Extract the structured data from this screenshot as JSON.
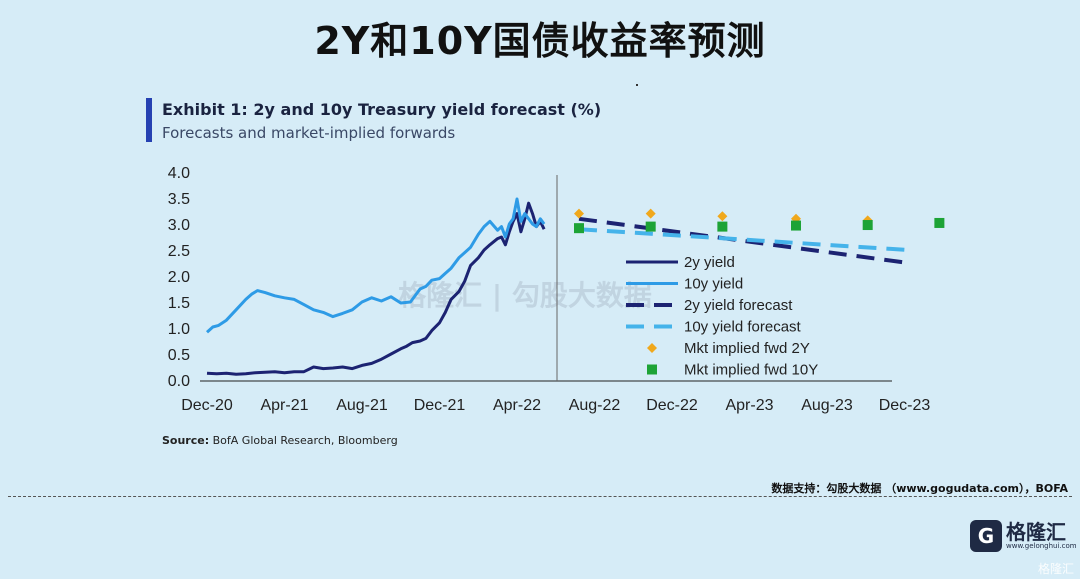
{
  "page": {
    "title": "2Y和10Y国债收益率预测",
    "footer": "数据支持：勾股大数据 （www.gogudata.com），BOFA",
    "logo_glyph": "G",
    "logo_name": "格隆汇",
    "logo_url": "www.gelonghui.com",
    "watermark_bottom": "格隆汇",
    "watermark_center": "格隆汇 | 勾股大数据",
    "source_label": "Source:",
    "source_text": "BofA Global Research, Bloomberg"
  },
  "chart_data": {
    "type": "line",
    "title": "Exhibit 1: 2y and 10y Treasury yield forecast (%)",
    "subtitle": "Forecasts and market-implied forwards",
    "ylim": [
      0.0,
      4.0
    ],
    "yticks": [
      "0.0",
      "0.5",
      "1.0",
      "1.5",
      "2.0",
      "2.5",
      "3.0",
      "3.5",
      "4.0"
    ],
    "xticks": [
      "Dec-20",
      "Apr-21",
      "Aug-21",
      "Dec-21",
      "Apr-22",
      "Aug-22",
      "Dec-22",
      "Apr-23",
      "Aug-23",
      "Dec-23"
    ],
    "x_unit": "months since Dec-20",
    "history_end_month": 17.4,
    "colors": {
      "y2": "#1c2372",
      "y10": "#2e9be6",
      "y2_forecast": "#1c2372",
      "y10_forecast": "#45b3ea",
      "fwd2y": "#f0a81c",
      "fwd10y": "#1da336"
    },
    "series": [
      {
        "name": "2y yield",
        "kind": "line",
        "x": [
          0,
          0.5,
          1,
          1.5,
          2,
          2.5,
          3,
          3.5,
          4,
          4.5,
          5,
          5.5,
          6,
          6.5,
          7,
          7.5,
          8,
          8.5,
          9,
          9.5,
          10,
          10.3,
          10.6,
          11,
          11.3,
          11.6,
          12,
          12.3,
          12.6,
          13,
          13.3,
          13.6,
          14,
          14.3,
          14.6,
          15,
          15.2,
          15.4,
          15.6,
          15.8,
          16,
          16.2,
          16.4,
          16.6,
          16.8,
          17,
          17.2,
          17.4
        ],
        "values": [
          0.13,
          0.12,
          0.13,
          0.11,
          0.12,
          0.14,
          0.15,
          0.16,
          0.14,
          0.16,
          0.16,
          0.25,
          0.22,
          0.23,
          0.25,
          0.22,
          0.28,
          0.32,
          0.4,
          0.5,
          0.6,
          0.65,
          0.72,
          0.75,
          0.8,
          0.95,
          1.1,
          1.3,
          1.55,
          1.7,
          1.9,
          2.2,
          2.35,
          2.5,
          2.6,
          2.72,
          2.75,
          2.6,
          2.85,
          3.05,
          3.2,
          2.85,
          3.1,
          3.4,
          3.2,
          2.95,
          3.05,
          2.9
        ]
      },
      {
        "name": "10y yield",
        "kind": "line",
        "x": [
          0,
          0.3,
          0.6,
          1,
          1.5,
          2,
          2.3,
          2.6,
          3,
          3.5,
          4,
          4.5,
          5,
          5.5,
          6,
          6.5,
          7,
          7.5,
          8,
          8.5,
          9,
          9.5,
          10,
          10.5,
          11,
          11.3,
          11.6,
          12,
          12.3,
          12.6,
          13,
          13.3,
          13.6,
          14,
          14.3,
          14.6,
          15,
          15.2,
          15.4,
          15.6,
          15.8,
          16,
          16.2,
          16.4,
          16.6,
          16.8,
          17,
          17.2,
          17.4
        ],
        "values": [
          0.92,
          1.02,
          1.05,
          1.15,
          1.35,
          1.55,
          1.65,
          1.72,
          1.68,
          1.62,
          1.58,
          1.55,
          1.45,
          1.35,
          1.3,
          1.22,
          1.28,
          1.35,
          1.5,
          1.58,
          1.52,
          1.6,
          1.48,
          1.5,
          1.75,
          1.8,
          1.92,
          1.95,
          2.05,
          2.15,
          2.35,
          2.45,
          2.55,
          2.8,
          2.95,
          3.05,
          2.88,
          2.95,
          2.75,
          3.0,
          3.1,
          3.48,
          3.05,
          3.2,
          3.1,
          3.0,
          2.95,
          3.1,
          3.0
        ]
      },
      {
        "name": "2y yield forecast",
        "kind": "dashed",
        "x": [
          19.2,
          36.2
        ],
        "values": [
          3.1,
          2.25
        ]
      },
      {
        "name": "10y yield forecast",
        "kind": "dashed",
        "x": [
          19.2,
          36.2
        ],
        "values": [
          2.9,
          2.5
        ]
      },
      {
        "name": "Mkt implied fwd 2Y",
        "kind": "diamond",
        "x": [
          19.2,
          22.9,
          26.6,
          30.4,
          34.1
        ],
        "values": [
          3.2,
          3.2,
          3.15,
          3.1,
          3.07
        ]
      },
      {
        "name": "Mkt implied fwd 10Y",
        "kind": "square",
        "x": [
          19.2,
          22.9,
          26.6,
          30.4,
          34.1,
          37.8
        ],
        "values": [
          2.92,
          2.95,
          2.95,
          2.97,
          2.98,
          3.02
        ]
      }
    ]
  }
}
